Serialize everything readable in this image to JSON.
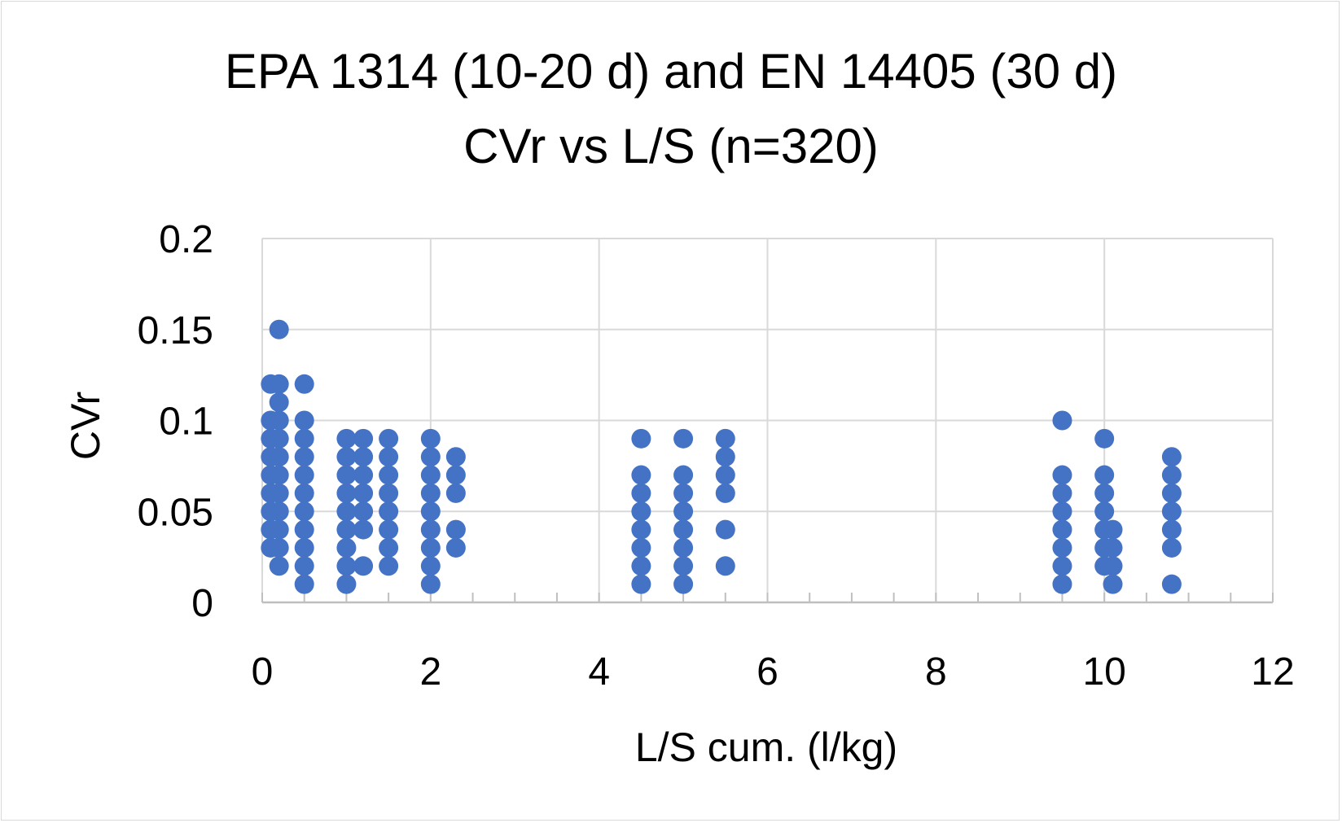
{
  "chart_data": {
    "type": "scatter",
    "title": [
      "EPA 1314 (10-20 d) and EN 14405 (30 d)",
      "CVr vs L/S (n=320)"
    ],
    "xlabel": "L/S cum. (l/kg)",
    "ylabel": "CVr",
    "xlim": [
      0,
      12
    ],
    "ylim": [
      0,
      0.2
    ],
    "x_ticks": [
      0,
      2,
      4,
      6,
      8,
      10,
      12
    ],
    "y_ticks": [
      0,
      0.05,
      0.1,
      0.15,
      0.2
    ],
    "x_tick_labels": [
      "0",
      "2",
      "4",
      "6",
      "8",
      "10",
      "12"
    ],
    "y_tick_labels": [
      "0",
      "0.05",
      "0.1",
      "0.15",
      "0.2"
    ],
    "grid": true,
    "legend": "none",
    "marker_color": "#4472C4",
    "series": [
      {
        "points": [
          [
            0.1,
            0.12
          ],
          [
            0.1,
            0.1
          ],
          [
            0.1,
            0.09
          ],
          [
            0.1,
            0.08
          ],
          [
            0.1,
            0.07
          ],
          [
            0.1,
            0.06
          ],
          [
            0.1,
            0.05
          ],
          [
            0.1,
            0.04
          ],
          [
            0.1,
            0.03
          ],
          [
            0.2,
            0.15
          ],
          [
            0.2,
            0.12
          ],
          [
            0.2,
            0.11
          ],
          [
            0.2,
            0.1
          ],
          [
            0.2,
            0.09
          ],
          [
            0.2,
            0.08
          ],
          [
            0.2,
            0.07
          ],
          [
            0.2,
            0.06
          ],
          [
            0.2,
            0.05
          ],
          [
            0.2,
            0.04
          ],
          [
            0.2,
            0.03
          ],
          [
            0.2,
            0.02
          ],
          [
            0.5,
            0.12
          ],
          [
            0.5,
            0.1
          ],
          [
            0.5,
            0.09
          ],
          [
            0.5,
            0.08
          ],
          [
            0.5,
            0.07
          ],
          [
            0.5,
            0.06
          ],
          [
            0.5,
            0.05
          ],
          [
            0.5,
            0.04
          ],
          [
            0.5,
            0.03
          ],
          [
            0.5,
            0.02
          ],
          [
            0.5,
            0.01
          ],
          [
            1.0,
            0.09
          ],
          [
            1.0,
            0.08
          ],
          [
            1.0,
            0.07
          ],
          [
            1.0,
            0.06
          ],
          [
            1.0,
            0.05
          ],
          [
            1.0,
            0.04
          ],
          [
            1.0,
            0.03
          ],
          [
            1.0,
            0.02
          ],
          [
            1.0,
            0.01
          ],
          [
            1.2,
            0.09
          ],
          [
            1.2,
            0.08
          ],
          [
            1.2,
            0.07
          ],
          [
            1.2,
            0.06
          ],
          [
            1.2,
            0.05
          ],
          [
            1.2,
            0.04
          ],
          [
            1.2,
            0.02
          ],
          [
            1.5,
            0.09
          ],
          [
            1.5,
            0.08
          ],
          [
            1.5,
            0.07
          ],
          [
            1.5,
            0.06
          ],
          [
            1.5,
            0.05
          ],
          [
            1.5,
            0.04
          ],
          [
            1.5,
            0.03
          ],
          [
            1.5,
            0.02
          ],
          [
            2.0,
            0.09
          ],
          [
            2.0,
            0.08
          ],
          [
            2.0,
            0.07
          ],
          [
            2.0,
            0.06
          ],
          [
            2.0,
            0.05
          ],
          [
            2.0,
            0.04
          ],
          [
            2.0,
            0.03
          ],
          [
            2.0,
            0.02
          ],
          [
            2.0,
            0.01
          ],
          [
            2.3,
            0.08
          ],
          [
            2.3,
            0.07
          ],
          [
            2.3,
            0.06
          ],
          [
            2.3,
            0.04
          ],
          [
            2.3,
            0.03
          ],
          [
            4.5,
            0.09
          ],
          [
            4.5,
            0.07
          ],
          [
            4.5,
            0.06
          ],
          [
            4.5,
            0.05
          ],
          [
            4.5,
            0.04
          ],
          [
            4.5,
            0.03
          ],
          [
            4.5,
            0.02
          ],
          [
            4.5,
            0.01
          ],
          [
            5.0,
            0.09
          ],
          [
            5.0,
            0.07
          ],
          [
            5.0,
            0.06
          ],
          [
            5.0,
            0.05
          ],
          [
            5.0,
            0.04
          ],
          [
            5.0,
            0.03
          ],
          [
            5.0,
            0.02
          ],
          [
            5.0,
            0.01
          ],
          [
            5.5,
            0.09
          ],
          [
            5.5,
            0.08
          ],
          [
            5.5,
            0.07
          ],
          [
            5.5,
            0.06
          ],
          [
            5.5,
            0.04
          ],
          [
            5.5,
            0.02
          ],
          [
            9.5,
            0.1
          ],
          [
            9.5,
            0.07
          ],
          [
            9.5,
            0.06
          ],
          [
            9.5,
            0.05
          ],
          [
            9.5,
            0.04
          ],
          [
            9.5,
            0.03
          ],
          [
            9.5,
            0.02
          ],
          [
            9.5,
            0.01
          ],
          [
            10.0,
            0.09
          ],
          [
            10.0,
            0.07
          ],
          [
            10.0,
            0.06
          ],
          [
            10.0,
            0.05
          ],
          [
            10.0,
            0.04
          ],
          [
            10.0,
            0.03
          ],
          [
            10.0,
            0.02
          ],
          [
            10.1,
            0.04
          ],
          [
            10.1,
            0.03
          ],
          [
            10.1,
            0.02
          ],
          [
            10.1,
            0.01
          ],
          [
            10.8,
            0.08
          ],
          [
            10.8,
            0.07
          ],
          [
            10.8,
            0.06
          ],
          [
            10.8,
            0.05
          ],
          [
            10.8,
            0.04
          ],
          [
            10.8,
            0.03
          ],
          [
            10.8,
            0.01
          ]
        ]
      }
    ]
  }
}
